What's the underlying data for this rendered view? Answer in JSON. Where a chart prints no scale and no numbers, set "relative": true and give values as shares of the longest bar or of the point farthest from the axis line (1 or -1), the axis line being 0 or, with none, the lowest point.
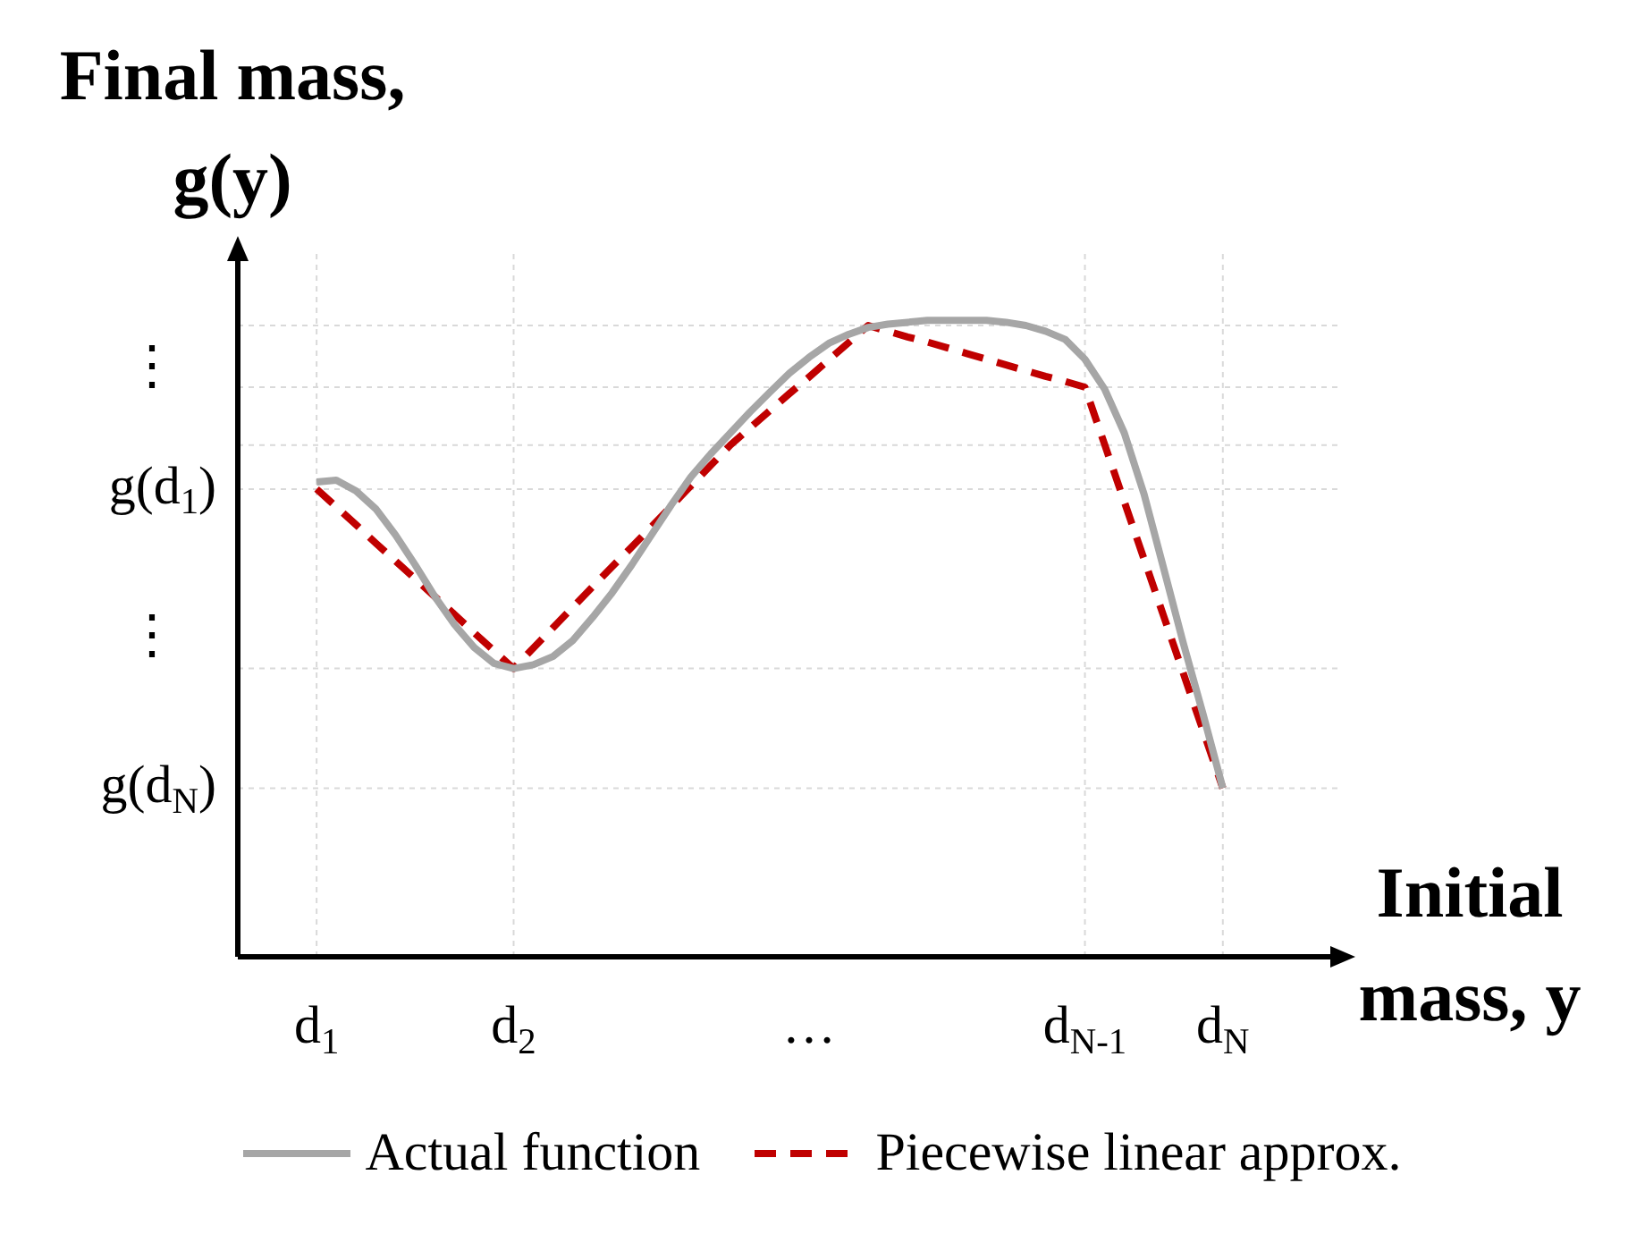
{
  "chart_data": {
    "type": "line",
    "xlabel": "Initial mass, y",
    "ylabel": "Final mass, g(y)",
    "relative": true,
    "categories": [
      null,
      null,
      null,
      null,
      "d$_{1}$",
      null,
      null,
      null,
      null,
      null,
      null,
      null,
      null,
      null,
      "d$_{2}$",
      null,
      null,
      null,
      null,
      null,
      null,
      null,
      null,
      null,
      null,
      null,
      null,
      null,
      null,
      "…",
      null,
      null,
      null,
      null,
      null,
      null,
      null,
      null,
      null,
      null,
      null,
      null,
      null,
      "d$_{N-1}$",
      null,
      null,
      null,
      null,
      null,
      null,
      "d$_{N}$",
      null,
      null,
      null,
      null,
      null,
      null
    ],
    "legend": "bottom",
    "marker": "none",
    "annotations": [
      "⋮",
      "⋮"
    ],
    "ref_lines": [
      {
        "axis": "y",
        "value": 0.265,
        "label": "g(d$_{N}$)",
        "color": "#d9d9d9",
        "line_style": "dotted"
      },
      {
        "axis": "y",
        "value": 0.453,
        "color": "#d9d9d9",
        "line_style": "dotted"
      },
      {
        "axis": "y",
        "value": 0.735,
        "label": "g(d$_{1}$)",
        "color": "#d9d9d9",
        "line_style": "dotted"
      },
      {
        "axis": "y",
        "value": 0.804,
        "color": "#d9d9d9",
        "line_style": "dotted"
      },
      {
        "axis": "y",
        "value": 0.895,
        "color": "#d9d9d9",
        "line_style": "dotted"
      },
      {
        "axis": "y",
        "value": 0.992,
        "color": "#d9d9d9",
        "line_style": "dotted"
      },
      {
        "axis": "x",
        "value": "d$_{1}$",
        "color": "#d9d9d9",
        "line_style": "dotted"
      },
      {
        "axis": "x",
        "value": "d$_{2}$",
        "color": "#d9d9d9",
        "line_style": "dotted"
      },
      {
        "axis": "x",
        "value": "d$_{N-1}$",
        "color": "#d9d9d9",
        "line_style": "dotted"
      },
      {
        "axis": "x",
        "value": "d$_{N}$",
        "color": "#d9d9d9",
        "line_style": "dotted"
      }
    ],
    "series": [
      {
        "name": "Actual function",
        "color": "#a6a6a6",
        "line_style": "solid",
        "values": [
          null,
          null,
          null,
          null,
          0.746,
          0.749,
          0.732,
          0.704,
          0.663,
          0.616,
          0.566,
          0.522,
          0.486,
          0.461,
          0.453,
          0.459,
          0.472,
          0.497,
          0.533,
          0.572,
          0.616,
          0.663,
          0.71,
          0.754,
          0.79,
          0.823,
          0.856,
          0.887,
          0.917,
          0.942,
          0.964,
          0.978,
          0.989,
          0.994,
          0.997,
          1,
          1,
          1,
          1,
          0.997,
          0.992,
          0.983,
          0.97,
          0.939,
          0.892,
          0.823,
          0.727,
          0.61,
          0.492,
          0.381,
          0.265,
          null,
          null,
          null,
          null,
          null,
          null
        ]
      },
      {
        "name": "Piecewise linear approx.",
        "color": "#c00000",
        "line_style": "dashed",
        "values": [
          null,
          null,
          null,
          null,
          0.735,
          0.707,
          0.679,
          0.65,
          0.622,
          0.594,
          0.566,
          0.538,
          0.509,
          0.481,
          0.453,
          0.485,
          0.517,
          0.549,
          0.581,
          0.613,
          0.644,
          0.676,
          0.708,
          0.74,
          0.772,
          0.804,
          0.831,
          0.858,
          0.885,
          0.911,
          0.938,
          0.965,
          0.992,
          0.983,
          0.974,
          0.966,
          0.957,
          0.948,
          0.939,
          0.93,
          0.921,
          0.912,
          0.904,
          0.895,
          0.805,
          0.715,
          0.625,
          0.535,
          0.445,
          0.355,
          0.265,
          null,
          null,
          null,
          null,
          null,
          null
        ]
      }
    ]
  }
}
